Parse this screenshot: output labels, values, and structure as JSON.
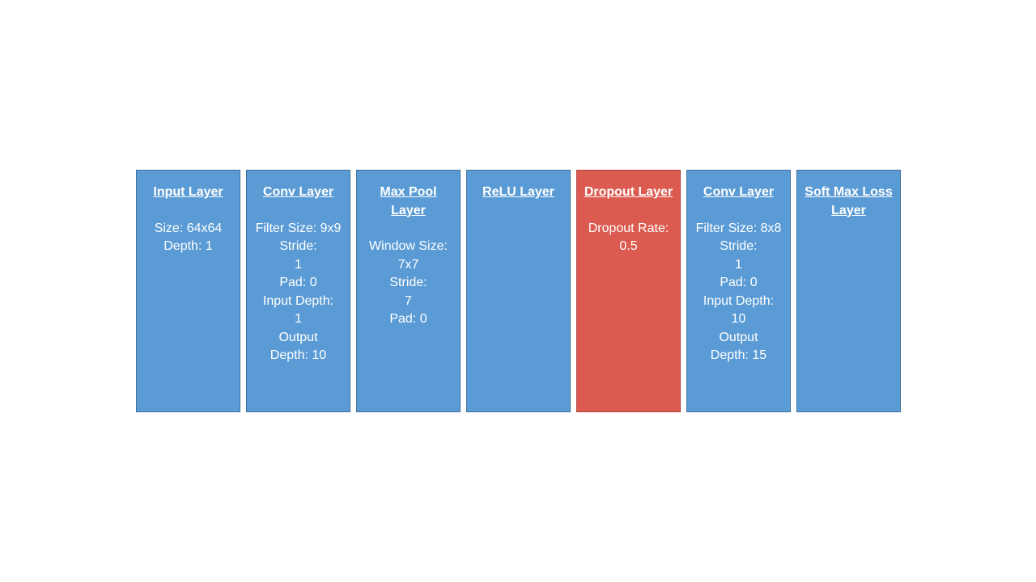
{
  "layers": [
    {
      "title": "Input Layer",
      "lines": [
        "Size: 64x64",
        "Depth: 1"
      ]
    },
    {
      "title": "Conv Layer",
      "lines": [
        "Filter Size: 9x9",
        "Stride:",
        "1",
        "Pad: 0",
        "Input Depth:",
        "1",
        "Output",
        "Depth: 10"
      ]
    },
    {
      "title": "Max Pool Layer",
      "lines": [
        "Window Size:",
        "7x7",
        "Stride:",
        "7",
        "Pad: 0"
      ]
    },
    {
      "title": "ReLU Layer",
      "lines": []
    },
    {
      "title": "Dropout Layer",
      "lines": [
        "Dropout Rate:",
        "0.5"
      ]
    },
    {
      "title": "Conv Layer",
      "lines": [
        "Filter Size: 8x8",
        "Stride:",
        "1",
        "Pad: 0",
        "Input Depth:",
        "10",
        "Output",
        "Depth: 15"
      ]
    },
    {
      "title": "Soft Max Loss Layer",
      "lines": []
    }
  ],
  "colors": {
    "layer_fill": "#5b9bd5",
    "dropout_fill": "#dc5b50",
    "text": "#ffffff"
  }
}
